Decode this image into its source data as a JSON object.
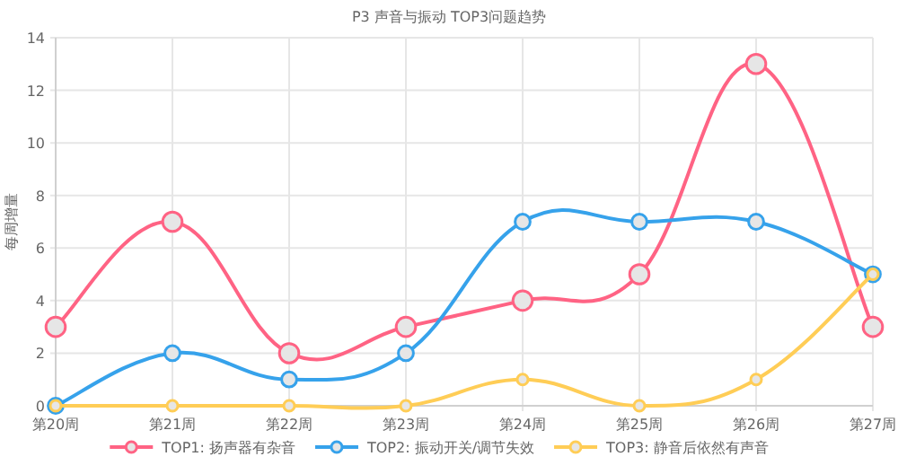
{
  "chart_data": {
    "type": "line",
    "title": "P3 声音与振动 TOP3问题趋势",
    "ylabel": "每周增量",
    "categories": [
      "第20周",
      "第21周",
      "第22周",
      "第23周",
      "第24周",
      "第25周",
      "第26周",
      "第27周"
    ],
    "ylim": [
      0,
      14
    ],
    "yticks": [
      0,
      2,
      4,
      6,
      8,
      10,
      12,
      14
    ],
    "grid": true,
    "legend": "bottom",
    "marker": "circle",
    "series": [
      {
        "name": "TOP1: 扬声器有杂音",
        "color": "#ff6384",
        "values": [
          3,
          7,
          2,
          3,
          4,
          5,
          13,
          3
        ]
      },
      {
        "name": "TOP2: 振动开关/调节失效",
        "color": "#36a2eb",
        "values": [
          0,
          2,
          1,
          2,
          7,
          7,
          7,
          5
        ]
      },
      {
        "name": "TOP3: 静音后依然有声音",
        "color": "#ffcd56",
        "values": [
          0,
          0,
          0,
          0,
          1,
          0,
          1,
          5
        ]
      }
    ]
  }
}
